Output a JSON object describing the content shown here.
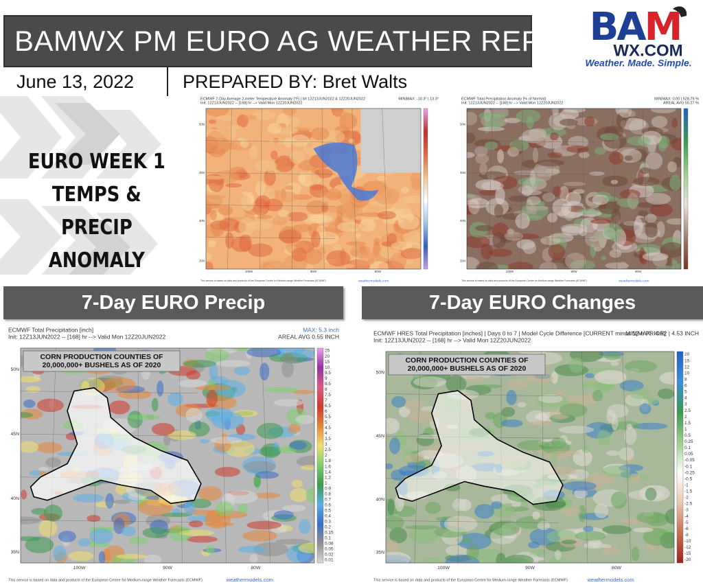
{
  "header": {
    "title": "BAMWX PM EURO AG WEATHER REPORT",
    "date": "June 13, 2022",
    "prepared_by_label": "PREPARED BY:",
    "prepared_by_name": "Bret Walts"
  },
  "logo": {
    "mark": "BAM",
    "domain": "WX.COM",
    "tagline": "Weather. Made. Simple."
  },
  "side_title": [
    "EURO WEEK 1",
    "TEMPS & PRECIP",
    "ANOMALY"
  ],
  "section_headings": [
    "7-Day EURO Precip",
    "7-Day EURO Changes"
  ],
  "maps": [
    {
      "title": "ECMWF 7-Day Average 2-meter Temperature Anomaly [°F] | b/t 12Z13JUN2022 & 12Z20JUN2022",
      "init": "Init: 12Z13JUN2022 -- [168] hr --> Valid Mon 12Z20JUN2022",
      "stats": [
        "MIN|MAX: -10.3° | 13.3°"
      ],
      "lat_labels": [
        "50N",
        "45N",
        "40N",
        "35N"
      ],
      "lon_labels": [
        "100W",
        "90W",
        "80W"
      ],
      "footer": "This service is based on data and products of the European Centre for Medium-range Weather Forecasts (ECMWF)",
      "source": "weathermodels.com"
    },
    {
      "title": "ECMWF Total Precipitation Anomaly [% of Normal]",
      "init": "Init: 12Z13JUN2022 -- [168] hr --> Valid Mon 12Z20JUN2022",
      "stats": [
        "MIN|MAX: 0.00 | 528.79 %",
        "AREAL AVG 55.27 %"
      ],
      "lat_labels": [
        "50N",
        "45N",
        "40N",
        "35N"
      ],
      "lon_labels": [
        "100W",
        "90W",
        "80W"
      ],
      "footer": "This service is based on data and products of the European Centre for Medium-range Weather Forecasts (ECMWF)",
      "source": "weathermodels.com"
    },
    {
      "title": "ECMWF Total Precipitation [inch]",
      "init": "Init: 12Z13JUN2022 -- [168] hr --> Valid Mon 12Z20JUN2022",
      "stats": [
        "MAX: 5.3 inch",
        "AREAL AVG 0.55 INCH"
      ],
      "box": [
        "CORN PRODUCTION COUNTIES OF",
        "20,000,000+ BUSHELS AS OF 2020"
      ],
      "legend": [
        "25",
        "20",
        "15",
        "10",
        "9.5",
        "9",
        "8.5",
        "8",
        "7.5",
        "7",
        "6.5",
        "6",
        "5.5",
        "5",
        "4.5",
        "4",
        "3.5",
        "3",
        "2.5",
        "2",
        "1.8",
        "1.6",
        "1.4",
        "1.2",
        "1",
        "0.9",
        "0.8",
        "0.7",
        "0.6",
        "0.5",
        "0.4",
        "0.3",
        "0.2",
        "0.15",
        "0.1",
        "0.08",
        "0.05",
        "0.02",
        "0.01"
      ],
      "lat_labels": [
        "50N",
        "45N",
        "40N",
        "35N"
      ],
      "lon_labels": [
        "100W",
        "90W",
        "80W"
      ],
      "footer": "This service is based on data and products of the European Centre for Medium-range Weather Forecasts (ECMWF)",
      "source": "weathermodels.com"
    },
    {
      "title": "ECMWF HRES Total Precipitation [inches] | Days 0 to 7 | Model Cycle Difference [CURRENT minus 12-h PRIOR]",
      "init": "Init: 12Z13JUN2022 -- [168] hr --> Valid Mon 12Z20JUN2022",
      "stats": [
        "MIN|MAX: -4.62 | 4.53 INCH"
      ],
      "box": [
        "CORN PRODUCTION COUNTIES OF",
        "20,000,000+ BUSHELS AS OF 2020"
      ],
      "legend": [
        "20",
        "15",
        "12",
        "10",
        "8",
        "6",
        "5",
        "4",
        "3",
        "2.5",
        "2",
        "1.5",
        "1",
        "0.5",
        "0.25",
        "0.1",
        "0.05",
        "-0.05",
        "-0.1",
        "-0.25",
        "-0.5",
        "-1",
        "-1.5",
        "-2",
        "-2.5",
        "-3",
        "-4",
        "-5",
        "-6",
        "-8",
        "-10",
        "-12",
        "-15",
        "-20"
      ],
      "lat_labels": [
        "50N",
        "45N",
        "40N",
        "35N"
      ],
      "lon_labels": [
        "100W",
        "90W",
        "80W"
      ],
      "footer": "This service is based on data and products of the European Centre for Medium-range Weather Forecasts (ECMWF)",
      "source": "weathermodels.com"
    }
  ]
}
